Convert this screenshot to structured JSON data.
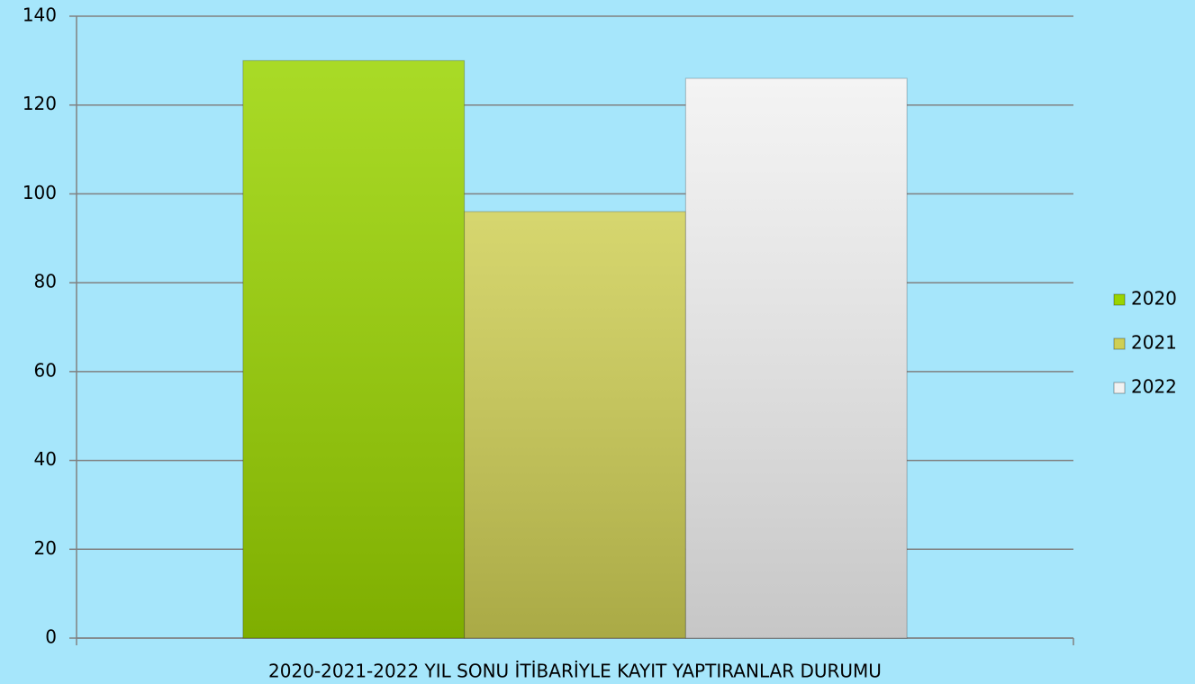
{
  "chart_data": {
    "type": "bar",
    "categories": [
      "2020-2021-2022 YIL SONU İTİBARİYLE KAYIT YAPTIRANLAR DURUMU"
    ],
    "series": [
      {
        "name": "2020",
        "color": "#9ad400",
        "values": [
          130
        ]
      },
      {
        "name": "2021",
        "color": "#cfcf55",
        "values": [
          96
        ]
      },
      {
        "name": "2022",
        "color": "#f2f2f2",
        "values": [
          126
        ]
      }
    ],
    "ylim": [
      0,
      140
    ],
    "yticks": [
      0,
      20,
      40,
      60,
      80,
      100,
      120,
      140
    ],
    "grid": true,
    "legend": "right"
  }
}
